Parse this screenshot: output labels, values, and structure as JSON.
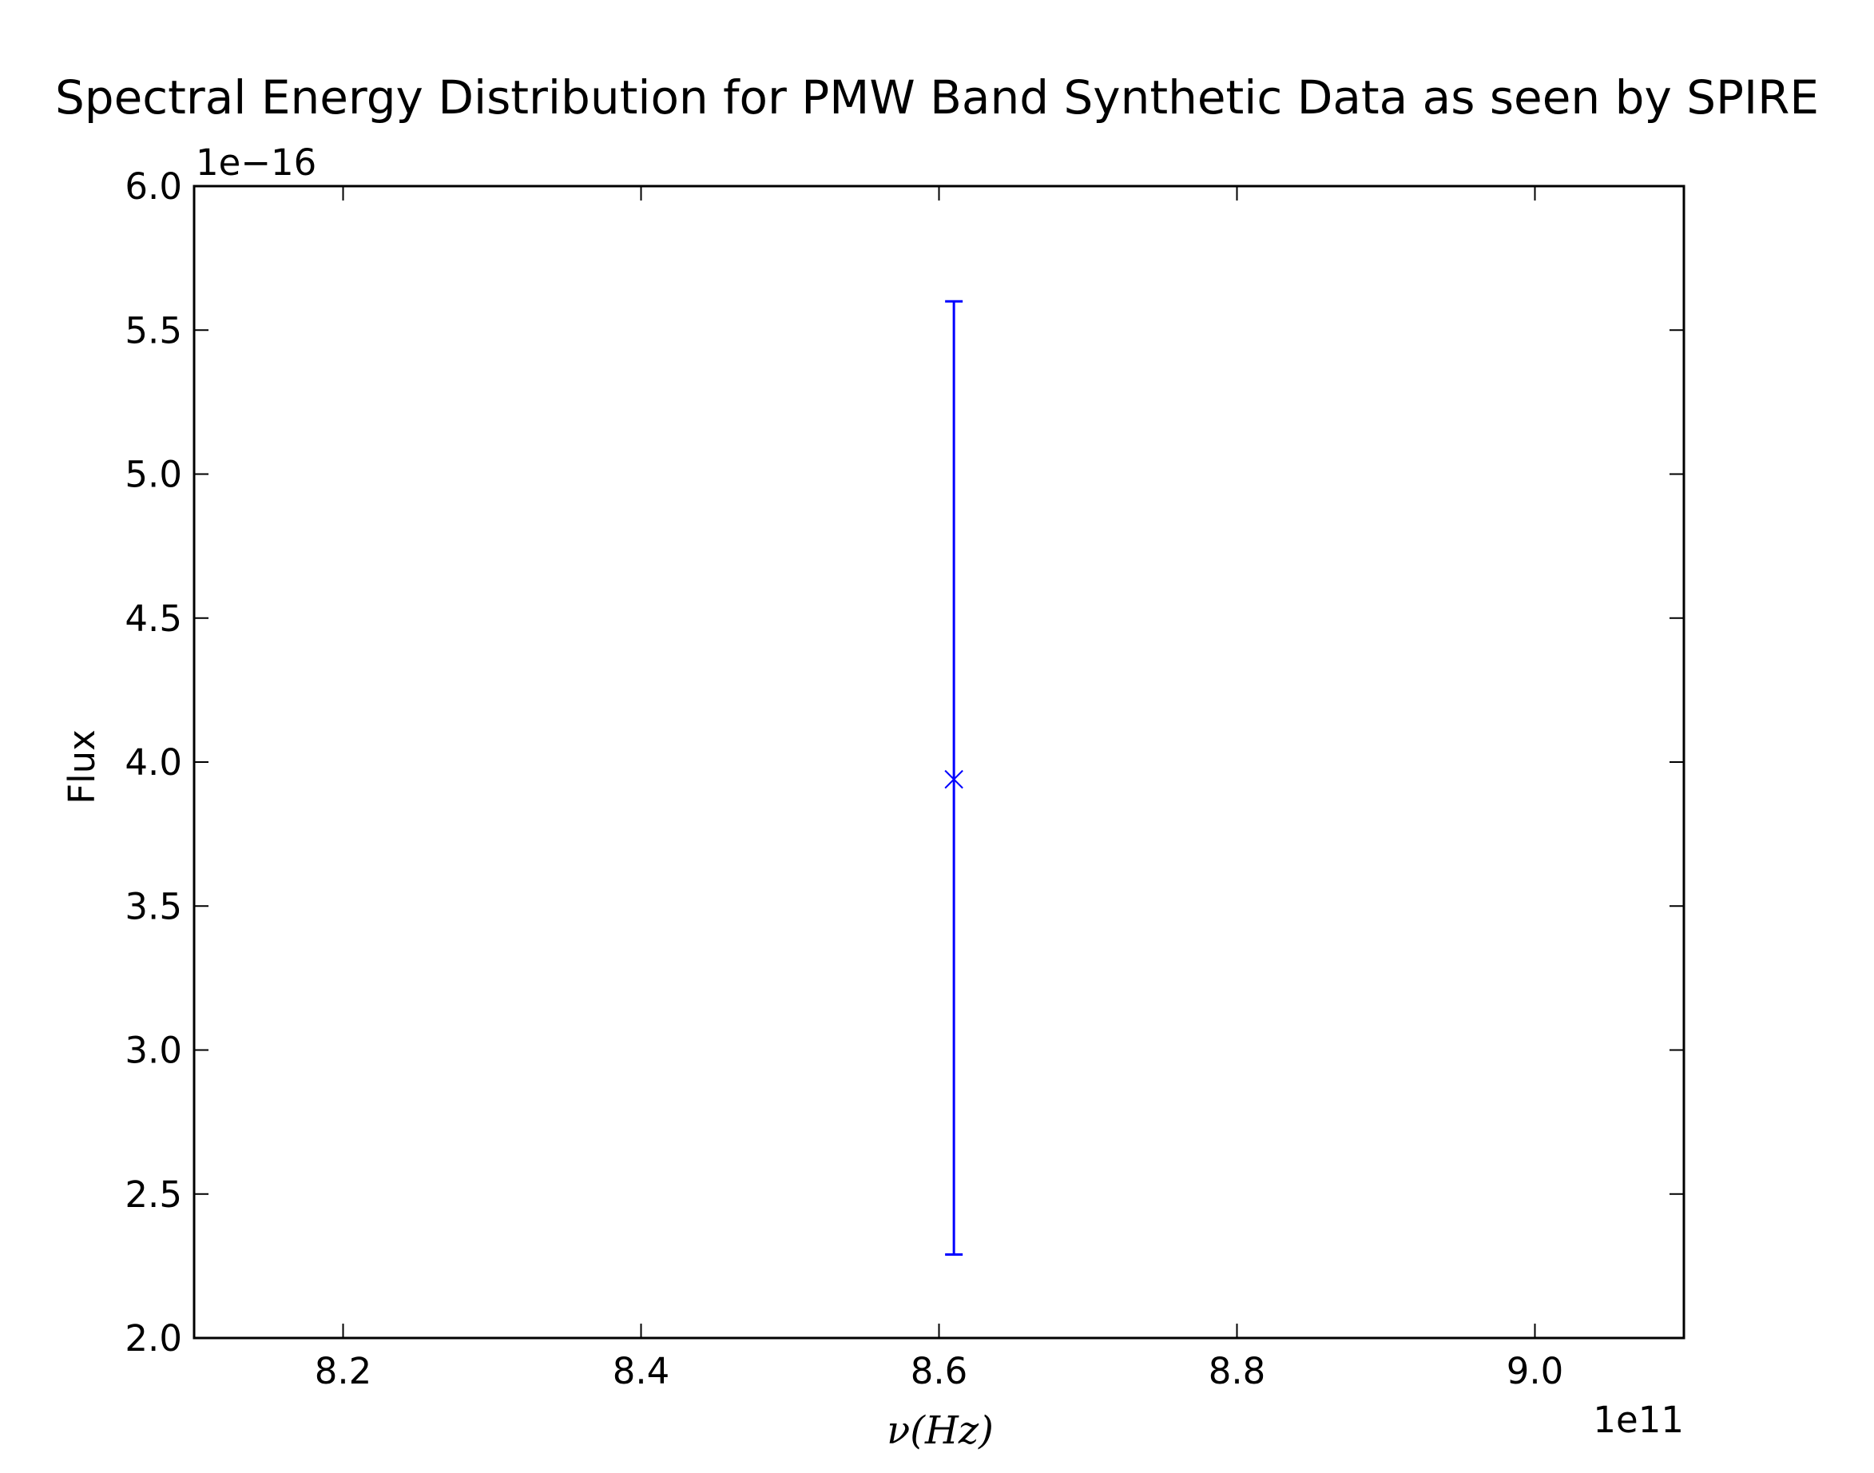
{
  "chart_data": {
    "type": "scatter",
    "title": "Spectral Energy Distribution for PMW Band Synthetic Data as seen by SPIRE",
    "xlabel": "ν(Hz)",
    "ylabel": "Flux",
    "x_offset_label": "1e11",
    "y_offset_label": "1e−16",
    "xlim": [
      8.1,
      9.1
    ],
    "ylim": [
      2.0,
      6.0
    ],
    "x_scale": 100000000000.0,
    "y_scale": 1e-16,
    "xticks": [
      8.2,
      8.4,
      8.6,
      8.8,
      9.0
    ],
    "xtick_labels": [
      "8.2",
      "8.4",
      "8.6",
      "8.8",
      "9.0"
    ],
    "yticks": [
      2.0,
      2.5,
      3.0,
      3.5,
      4.0,
      4.5,
      5.0,
      5.5,
      6.0
    ],
    "ytick_labels": [
      "2.0",
      "2.5",
      "3.0",
      "3.5",
      "4.0",
      "4.5",
      "5.0",
      "5.5",
      "6.0"
    ],
    "grid": false,
    "series": [
      {
        "color": "#0000ff",
        "marker": "x",
        "points": [
          {
            "x": 8.61,
            "y": 3.94,
            "yerr_low": 2.29,
            "yerr_high": 5.6
          }
        ]
      }
    ]
  }
}
